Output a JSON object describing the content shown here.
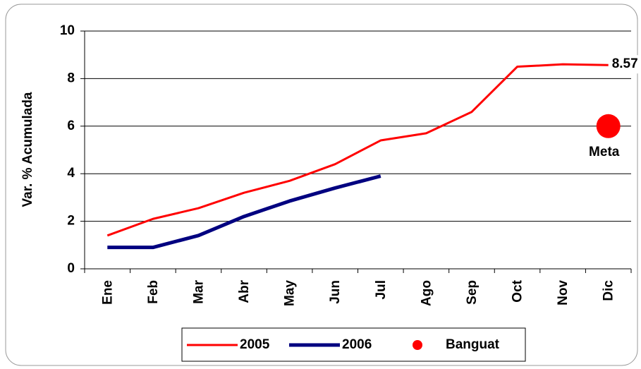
{
  "chart_data": {
    "type": "line",
    "y_label": "Var. % Acumulada",
    "categories": [
      "Ene",
      "Feb",
      "Mar",
      "Abr",
      "May",
      "Jun",
      "Jul",
      "Ago",
      "Sep",
      "Oct",
      "Nov",
      "Dic"
    ],
    "series": [
      {
        "name": "2005",
        "color": "#ff0000",
        "width": 3,
        "values": [
          1.4,
          2.1,
          2.55,
          3.2,
          3.7,
          4.4,
          5.4,
          5.7,
          6.6,
          8.5,
          8.6,
          8.57
        ]
      },
      {
        "name": "2006",
        "color": "#000080",
        "width": 5,
        "values": [
          0.9,
          0.9,
          1.4,
          2.2,
          2.85,
          3.4,
          3.9,
          null,
          null,
          null,
          null,
          null
        ]
      },
      {
        "name": "Banguat",
        "color": "#ff0000",
        "marker": true,
        "values": [
          null,
          null,
          null,
          null,
          null,
          null,
          null,
          null,
          null,
          null,
          null,
          6
        ]
      }
    ],
    "end_label_series": 0,
    "annotation": "Meta",
    "ylim": [
      0,
      10
    ],
    "yticks": [
      0,
      2,
      4,
      6,
      8,
      10
    ],
    "grid": true,
    "legend": "bottom"
  }
}
